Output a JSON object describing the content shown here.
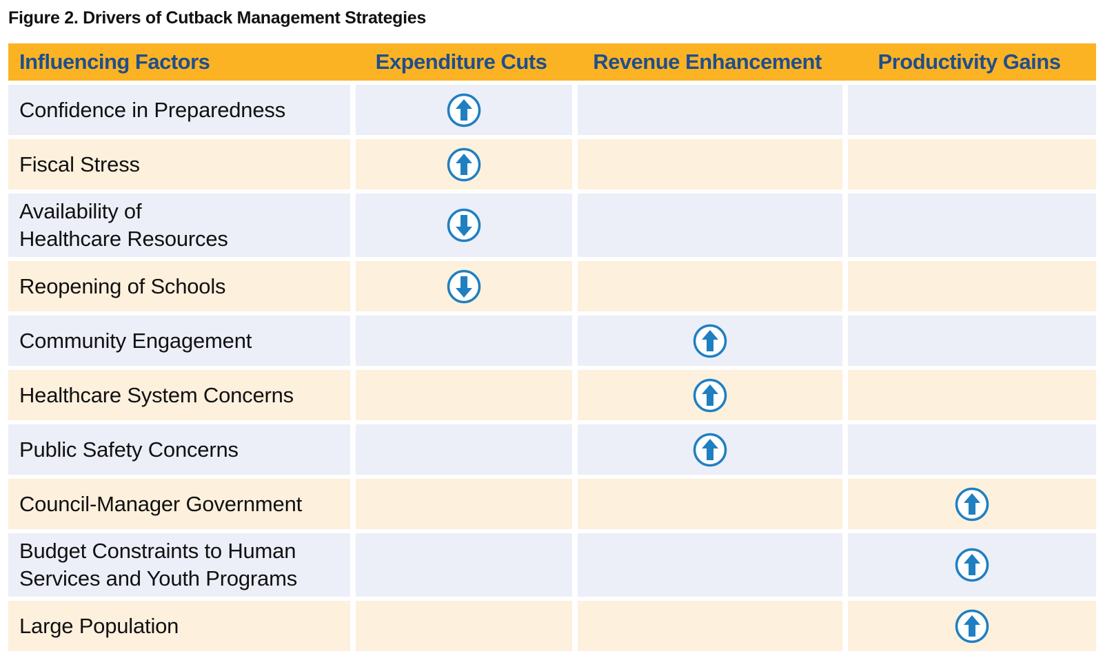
{
  "title": "Figure 2. Drivers of Cutback Management Strategies",
  "headers": [
    "Influencing Factors",
    "Expenditure Cuts",
    "Revenue Enhancement",
    "Productivity Gains"
  ],
  "colors": {
    "header_bg": "#FBB324",
    "header_text": "#1F4E8C",
    "row_blue": "#ECEEF8",
    "row_cream": "#FDF0DC",
    "arrow": "#1F7FC1"
  },
  "rows": [
    {
      "factor": "Confidence in Preparedness",
      "effects": [
        "up",
        "",
        ""
      ]
    },
    {
      "factor": "Fiscal Stress",
      "effects": [
        "up",
        "",
        ""
      ]
    },
    {
      "factor": "Availability of\nHealthcare Resources",
      "effects": [
        "down",
        "",
        ""
      ]
    },
    {
      "factor": "Reopening of Schools",
      "effects": [
        "down",
        "",
        ""
      ]
    },
    {
      "factor": "Community Engagement",
      "effects": [
        "",
        "up",
        ""
      ]
    },
    {
      "factor": "Healthcare System Concerns",
      "effects": [
        "",
        "up",
        ""
      ]
    },
    {
      "factor": "Public Safety Concerns",
      "effects": [
        "",
        "up",
        ""
      ]
    },
    {
      "factor": "Council-Manager Government",
      "effects": [
        "",
        "",
        "up"
      ]
    },
    {
      "factor": "Budget Constraints to Human\nServices and Youth Programs",
      "effects": [
        "",
        "",
        "up"
      ]
    },
    {
      "factor": "Large Population",
      "effects": [
        "",
        "",
        "up"
      ]
    }
  ]
}
